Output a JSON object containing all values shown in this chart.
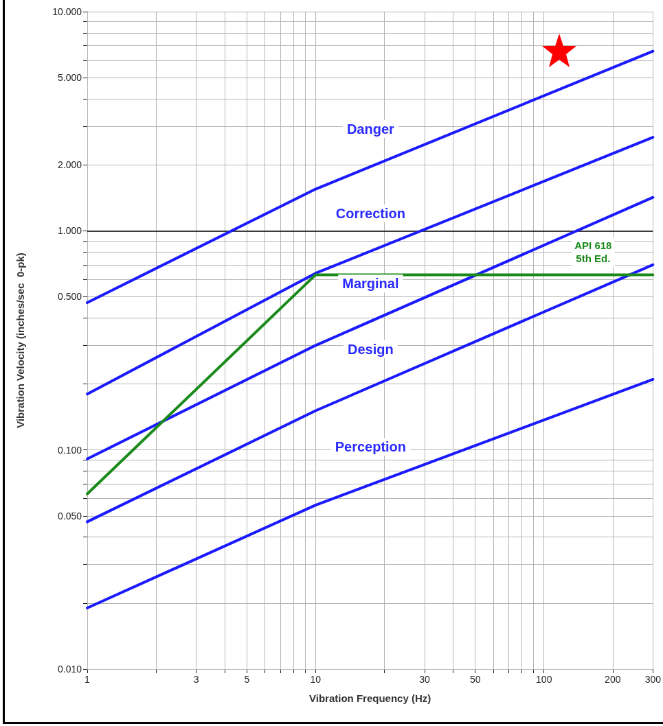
{
  "chart_data": {
    "type": "line",
    "xlabel": "Vibration Frequency (Hz)",
    "ylabel": "Vibration Velocity (inches/sec  0-pk)",
    "log": "xy",
    "grid": true,
    "legend": false,
    "marker": "none",
    "line_style": "solid",
    "xlim": [
      1,
      300
    ],
    "ylim": [
      0.01,
      10
    ],
    "xticks": [
      1,
      {
        "value": 2,
        "label": null
      },
      3,
      {
        "value": 4,
        "label": null
      },
      5,
      {
        "value": 6,
        "label": null
      },
      {
        "value": 7,
        "label": null
      },
      {
        "value": 8,
        "label": null
      },
      {
        "value": 9,
        "label": null
      },
      10,
      {
        "value": 20,
        "label": null
      },
      30,
      {
        "value": 40,
        "label": null
      },
      50,
      {
        "value": 60,
        "label": null
      },
      {
        "value": 70,
        "label": null
      },
      {
        "value": 80,
        "label": null
      },
      {
        "value": 90,
        "label": null
      },
      100,
      200,
      300
    ],
    "yticks": [
      {
        "value": 0.01,
        "label": "0.010"
      },
      {
        "value": 0.02,
        "label": null
      },
      {
        "value": 0.03,
        "label": null
      },
      {
        "value": 0.04,
        "label": null
      },
      {
        "value": 0.05,
        "label": "0.050"
      },
      {
        "value": 0.06,
        "label": null
      },
      {
        "value": 0.07,
        "label": null
      },
      {
        "value": 0.08,
        "label": null
      },
      {
        "value": 0.09,
        "label": null
      },
      {
        "value": 0.1,
        "label": "0.100"
      },
      {
        "value": 0.2,
        "label": null
      },
      {
        "value": 0.3,
        "label": null
      },
      {
        "value": 0.4,
        "label": null
      },
      {
        "value": 0.5,
        "label": "0.500"
      },
      {
        "value": 0.6,
        "label": null
      },
      {
        "value": 0.7,
        "label": null
      },
      {
        "value": 0.8,
        "label": null
      },
      {
        "value": 0.9,
        "label": null
      },
      {
        "value": 1,
        "label": "1.000"
      },
      {
        "value": 2,
        "label": "2.000"
      },
      {
        "value": 3,
        "label": null
      },
      {
        "value": 4,
        "label": null
      },
      {
        "value": 5,
        "label": "5.000"
      },
      {
        "value": 6,
        "label": null
      },
      {
        "value": 7,
        "label": null
      },
      {
        "value": 8,
        "label": null
      },
      {
        "value": 9,
        "label": null
      },
      {
        "value": 10,
        "label": "10.000"
      }
    ],
    "series": [
      {
        "color": "#1a1aff",
        "x": [
          1,
          10,
          300
        ],
        "values": [
          0.47,
          1.55,
          6.6
        ]
      },
      {
        "color": "#1a1aff",
        "x": [
          1,
          10,
          300
        ],
        "values": [
          0.18,
          0.64,
          2.67
        ]
      },
      {
        "color": "#1a1aff",
        "x": [
          1,
          10,
          300
        ],
        "values": [
          0.091,
          0.3,
          1.42
        ]
      },
      {
        "color": "#1a1aff",
        "x": [
          1,
          10,
          300
        ],
        "values": [
          0.047,
          0.151,
          0.7
        ]
      },
      {
        "color": "#1a1aff",
        "x": [
          1,
          10,
          300
        ],
        "values": [
          0.019,
          0.056,
          0.21
        ]
      },
      {
        "name": "API 618\n5th Ed.",
        "color": "#1a8a1a",
        "x": [
          1,
          10,
          300
        ],
        "values": [
          0.063,
          0.63,
          0.63
        ]
      }
    ],
    "ref_lines": [
      {
        "axis": "y",
        "value": 1,
        "color": "#000000"
      }
    ],
    "annotations": [
      "Danger",
      "Correction",
      "Marginal",
      "Design",
      "Perception"
    ]
  }
}
